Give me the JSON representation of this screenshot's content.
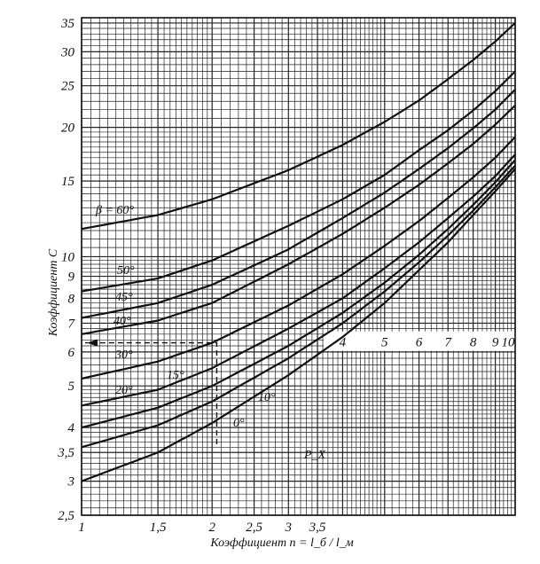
{
  "chart_data": {
    "type": "line",
    "x_scale": "log",
    "y_scale": "log",
    "xlim": [
      1,
      10
    ],
    "ylim": [
      2.5,
      36
    ],
    "grid": true,
    "ylabel": "Коэффициент C",
    "xlabel": "Коэффициент n = l_б / l_м",
    "y_ticks": [
      "2,5",
      "3",
      "3,5",
      "4",
      "5",
      "6",
      "7",
      "8",
      "9",
      "10",
      "15",
      "20",
      "25",
      "30",
      "35"
    ],
    "y_tick_values": [
      2.5,
      3,
      3.5,
      4,
      5,
      6,
      7,
      8,
      9,
      10,
      15,
      20,
      25,
      30,
      35
    ],
    "x_ticks_bottom": [
      "1",
      "1,5",
      "2",
      "2,5",
      "3",
      "3,5"
    ],
    "x_tick_values_bottom": [
      1,
      1.5,
      2,
      2.5,
      3,
      3.5
    ],
    "x_ticks_mid": [
      "4",
      "5",
      "6",
      "7",
      "8",
      "9",
      "10"
    ],
    "x_tick_values_mid": [
      4,
      5,
      6,
      7,
      8,
      9,
      10
    ],
    "series": [
      {
        "name": "β = 60°",
        "x": [
          1,
          1.5,
          2,
          3,
          4,
          5,
          6,
          7,
          8,
          9,
          10
        ],
        "y": [
          11.6,
          12.5,
          13.6,
          15.9,
          18.2,
          20.6,
          23.1,
          25.9,
          28.7,
          31.7,
          35
        ]
      },
      {
        "name": "50°",
        "x": [
          1,
          1.5,
          2,
          3,
          4,
          5,
          6,
          7,
          8,
          9,
          10
        ],
        "y": [
          8.3,
          8.9,
          9.8,
          11.8,
          13.6,
          15.5,
          17.7,
          19.7,
          21.9,
          24.3,
          27
        ]
      },
      {
        "name": "45°",
        "x": [
          1,
          1.5,
          2,
          3,
          4,
          5,
          6,
          7,
          8,
          9,
          10
        ],
        "y": [
          7.2,
          7.8,
          8.6,
          10.4,
          12.3,
          14.1,
          16.0,
          17.9,
          19.9,
          22.0,
          24.5
        ]
      },
      {
        "name": "40°",
        "x": [
          1,
          1.5,
          2,
          3,
          4,
          5,
          6,
          7,
          8,
          9,
          10
        ],
        "y": [
          6.6,
          7.1,
          7.8,
          9.6,
          11.3,
          13.0,
          14.7,
          16.5,
          18.3,
          20.3,
          22.5
        ]
      },
      {
        "name": "30°",
        "x": [
          1,
          1.5,
          2,
          3,
          4,
          5,
          6,
          7,
          8,
          9,
          10
        ],
        "y": [
          5.2,
          5.7,
          6.3,
          7.7,
          9.1,
          10.6,
          12.1,
          13.7,
          15.3,
          17.0,
          19
        ]
      },
      {
        "name": "20°",
        "x": [
          1,
          1.5,
          2,
          3,
          4,
          5,
          6,
          7,
          8,
          9,
          10
        ],
        "y": [
          4.5,
          4.9,
          5.5,
          6.8,
          8.0,
          9.4,
          10.8,
          12.3,
          13.8,
          15.4,
          17.3
        ]
      },
      {
        "name": "15°",
        "x": [
          1,
          1.5,
          2,
          3,
          4,
          5,
          6,
          7,
          8,
          9,
          10
        ],
        "y": [
          4.0,
          4.45,
          5.0,
          6.2,
          7.4,
          8.7,
          10.1,
          11.6,
          13.2,
          14.9,
          16.8
        ]
      },
      {
        "name": "10°",
        "x": [
          1,
          1.5,
          2,
          3,
          4,
          5,
          6,
          7,
          8,
          9,
          10
        ],
        "y": [
          3.6,
          4.05,
          4.6,
          5.8,
          7.0,
          8.3,
          9.7,
          11.2,
          12.8,
          14.5,
          16.3
        ]
      },
      {
        "name": "0°",
        "x": [
          1,
          1.5,
          2,
          3,
          4,
          5,
          6,
          7,
          8,
          9,
          10
        ],
        "y": [
          3.0,
          3.5,
          4.1,
          5.3,
          6.5,
          7.8,
          9.3,
          10.8,
          12.5,
          14.2,
          16.0
        ]
      }
    ],
    "series_label_text": [
      "β = 60°",
      "50°",
      "45°",
      "40°",
      "30°",
      "20°",
      "15°",
      "10°",
      "0°"
    ],
    "annotations": [
      {
        "text": "P_X",
        "x": 9.5,
        "y": 3.4
      }
    ],
    "example_path": {
      "x": 2.05,
      "y": 6.3
    }
  }
}
